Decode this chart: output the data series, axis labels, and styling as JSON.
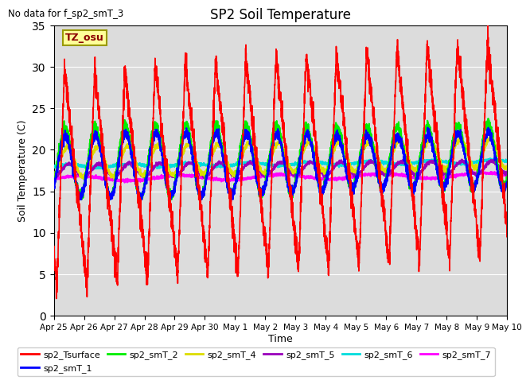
{
  "title": "SP2 Soil Temperature",
  "annotation": "No data for f_sp2_smT_3",
  "tz_label": "TZ_osu",
  "ylabel": "Soil Temperature (C)",
  "xlabel": "Time",
  "ylim": [
    0,
    35
  ],
  "colors": {
    "sp2_Tsurface": "#FF0000",
    "sp2_smT_1": "#0000FF",
    "sp2_smT_2": "#00EE00",
    "sp2_smT_4": "#DDDD00",
    "sp2_smT_5": "#9900BB",
    "sp2_smT_6": "#00DDDD",
    "sp2_smT_7": "#FF00FF"
  },
  "xtick_labels": [
    "Apr 25",
    "Apr 26",
    "Apr 27",
    "Apr 28",
    "Apr 29",
    "Apr 30",
    "May 1",
    "May 2",
    "May 3",
    "May 4",
    "May 5",
    "May 6",
    "May 7",
    "May 8",
    "May 9",
    "May 10"
  ],
  "background_color": "#DCDCDC",
  "figure_background": "#FFFFFF",
  "linewidth_surface": 1.2,
  "linewidth_others": 1.5
}
